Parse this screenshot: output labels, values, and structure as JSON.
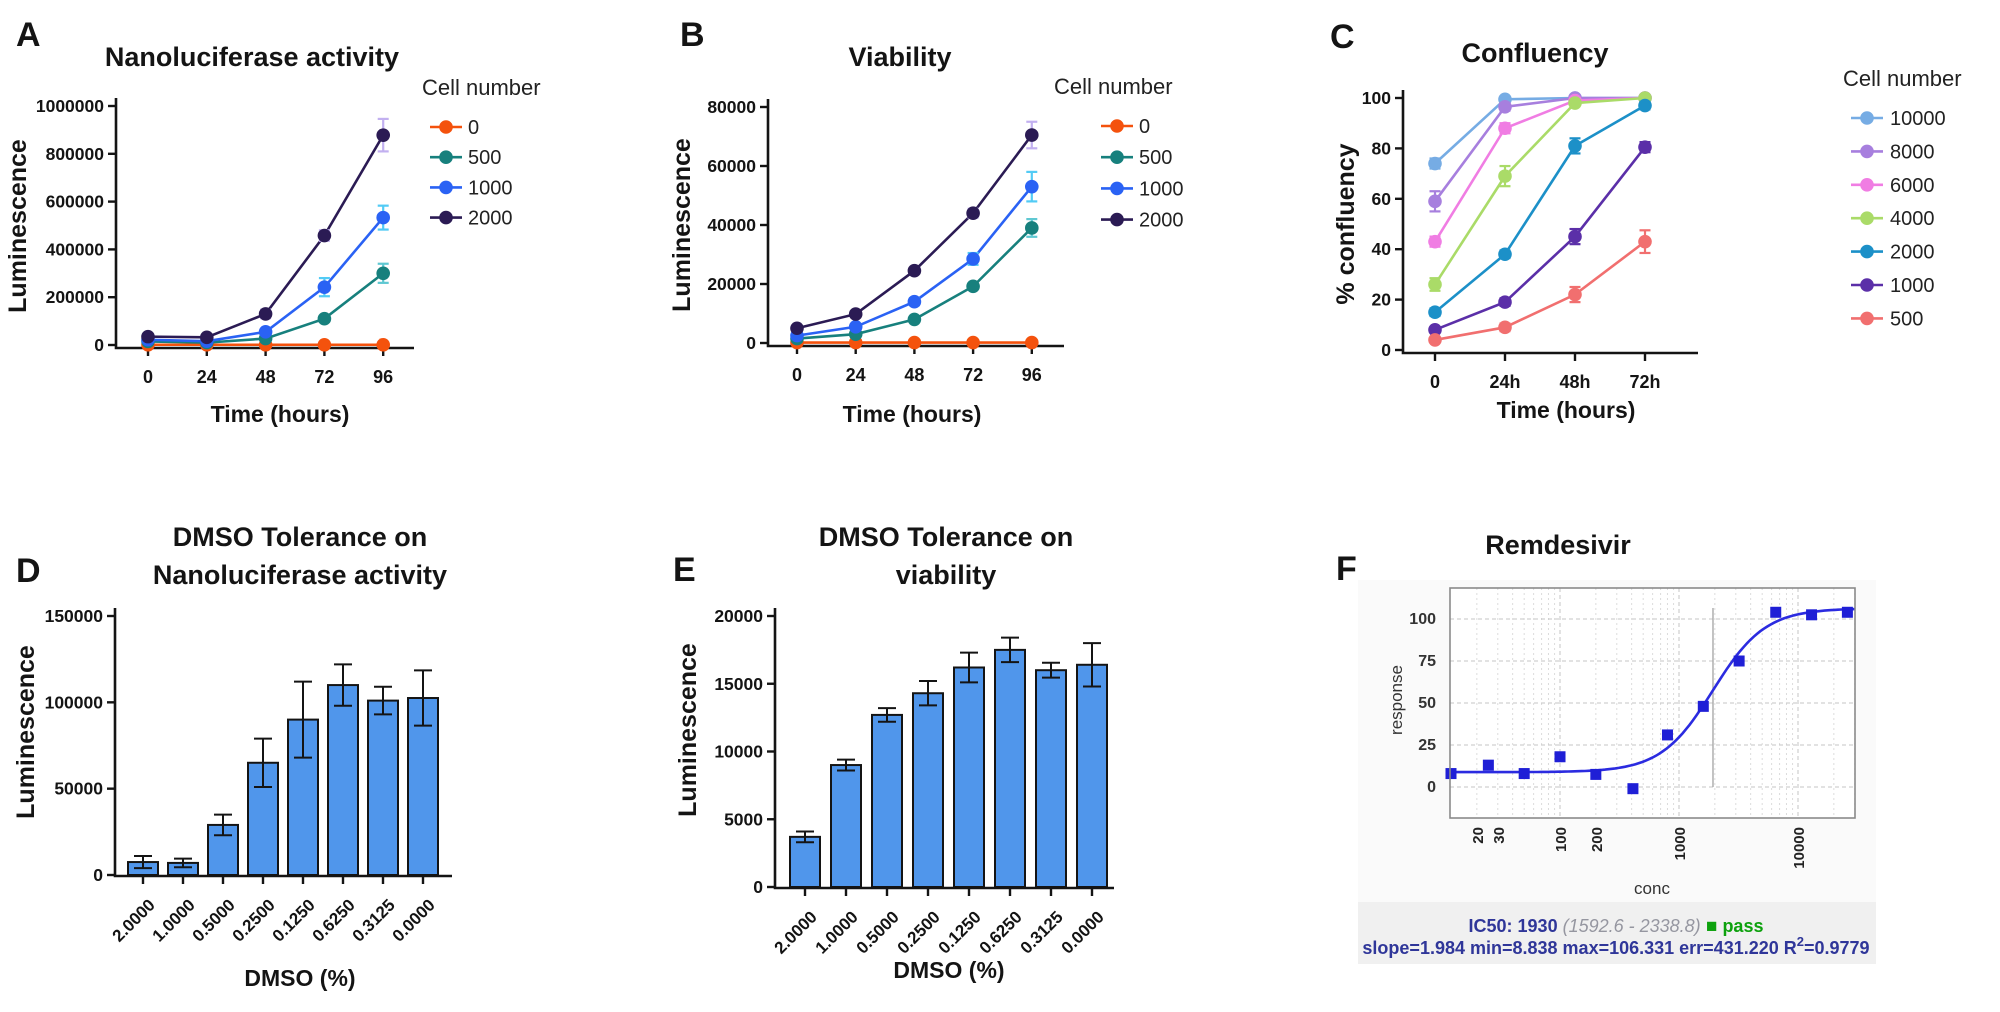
{
  "figure": {
    "background": "#ffffff",
    "description": "Six-panel assay optimization figure"
  },
  "chart_data": [
    {
      "panel": "A",
      "type": "line",
      "title": "Nanoluciferase activity",
      "xlabel": "Time (hours)",
      "ylabel": "Luminescence",
      "legend_title": "Cell number",
      "legend_position": "right",
      "grid": false,
      "categories": [
        "0",
        "24",
        "48",
        "72",
        "96"
      ],
      "ylim": [
        0,
        1000000
      ],
      "yticks": [
        0,
        200000,
        400000,
        600000,
        800000,
        1000000
      ],
      "ytick_labels": [
        "0",
        "200000",
        "400000",
        "600000",
        "800000",
        "1000000"
      ],
      "series": [
        {
          "name": "0",
          "color": "#F4520D",
          "err_color": "#F4520D",
          "values": [
            1000,
            1000,
            1000,
            1000,
            1000
          ],
          "errors": [
            0,
            0,
            0,
            0,
            0
          ]
        },
        {
          "name": "500",
          "color": "#17807D",
          "err_color": "#5FC8D2",
          "values": [
            15000,
            10000,
            27000,
            110000,
            300000
          ],
          "errors": [
            4000,
            3000,
            9000,
            12000,
            40000
          ]
        },
        {
          "name": "1000",
          "color": "#2A62F4",
          "err_color": "#52CBF5",
          "values": [
            22000,
            16000,
            55000,
            242000,
            533000
          ],
          "errors": [
            4000,
            4000,
            10000,
            38000,
            50000
          ]
        },
        {
          "name": "2000",
          "color": "#2B1B54",
          "err_color": "#C2B0F0",
          "values": [
            35000,
            32000,
            130000,
            458000,
            878000
          ],
          "errors": [
            5000,
            6000,
            18000,
            22000,
            68000
          ]
        }
      ]
    },
    {
      "panel": "B",
      "type": "line",
      "title": "Viability",
      "xlabel": "Time (hours)",
      "ylabel": "Luminescence",
      "legend_title": "Cell number",
      "legend_position": "right",
      "grid": false,
      "categories": [
        "0",
        "24",
        "48",
        "72",
        "96"
      ],
      "ylim": [
        0,
        80000
      ],
      "yticks": [
        0,
        20000,
        40000,
        60000,
        80000
      ],
      "ytick_labels": [
        "0",
        "20000",
        "40000",
        "60000",
        "80000"
      ],
      "series": [
        {
          "name": "0",
          "color": "#F4520D",
          "err_color": "#F4520D",
          "values": [
            150,
            150,
            150,
            150,
            150
          ],
          "errors": [
            0,
            0,
            0,
            0,
            0
          ]
        },
        {
          "name": "500",
          "color": "#17807D",
          "err_color": "#5FC8D2",
          "values": [
            1500,
            3000,
            8000,
            19200,
            39000
          ],
          "errors": [
            300,
            400,
            600,
            1000,
            3000
          ]
        },
        {
          "name": "1000",
          "color": "#2A62F4",
          "err_color": "#52CBF5",
          "values": [
            2500,
            5500,
            14000,
            28500,
            53000
          ],
          "errors": [
            300,
            500,
            1200,
            2000,
            5000
          ]
        },
        {
          "name": "2000",
          "color": "#2B1B54",
          "err_color": "#C2B0F0",
          "values": [
            5000,
            9800,
            24500,
            44000,
            70500
          ],
          "errors": [
            400,
            600,
            1000,
            1500,
            4500
          ]
        }
      ]
    },
    {
      "panel": "C",
      "type": "line",
      "title": "Confluency",
      "xlabel": "Time (hours)",
      "ylabel": "% confluency",
      "legend_title": "Cell number",
      "legend_position": "right",
      "grid": false,
      "categories": [
        "0",
        "24h",
        "48h",
        "72h"
      ],
      "ylim": [
        0,
        100
      ],
      "yticks": [
        0,
        20,
        40,
        60,
        80,
        100
      ],
      "ytick_labels": [
        "0",
        "20",
        "40",
        "60",
        "80",
        "100"
      ],
      "series": [
        {
          "name": "10000",
          "color": "#76ACE4",
          "err_color": "#76ACE4",
          "values": [
            74,
            99.5,
            100,
            100
          ],
          "errors": [
            2,
            0.8,
            0.8,
            0.8
          ]
        },
        {
          "name": "8000",
          "color": "#A77FDE",
          "err_color": "#A77FDE",
          "values": [
            59,
            96.5,
            100,
            100
          ],
          "errors": [
            4,
            1.5,
            0.8,
            0.8
          ]
        },
        {
          "name": "6000",
          "color": "#F07DE3",
          "err_color": "#F07DE3",
          "values": [
            43,
            88,
            99,
            100
          ],
          "errors": [
            2,
            2,
            0.8,
            0.8
          ]
        },
        {
          "name": "4000",
          "color": "#AADB68",
          "err_color": "#AADB68",
          "values": [
            26,
            69,
            98,
            100
          ],
          "errors": [
            2.5,
            4,
            1,
            0.8
          ]
        },
        {
          "name": "2000",
          "color": "#1C90C8",
          "err_color": "#1C90C8",
          "values": [
            15,
            38,
            81,
            97
          ],
          "errors": [
            1.5,
            1.5,
            3,
            1.5
          ]
        },
        {
          "name": "1000",
          "color": "#5B2FA8",
          "err_color": "#5B2FA8",
          "values": [
            8,
            19,
            45,
            80.5
          ],
          "errors": [
            1,
            1.5,
            3,
            2
          ]
        },
        {
          "name": "500",
          "color": "#F16F6F",
          "err_color": "#F16F6F",
          "values": [
            4,
            9,
            22,
            43
          ],
          "errors": [
            1,
            1.5,
            3,
            4.5
          ]
        }
      ]
    },
    {
      "panel": "D",
      "type": "bar",
      "title_lines": [
        "DMSO Tolerance on",
        "Nanoluciferase activity"
      ],
      "xlabel": "DMSO (%)",
      "ylabel": "Luminescence",
      "grid": false,
      "bar_color": "#5096EB",
      "categories": [
        "2.0000",
        "1.0000",
        "0.5000",
        "0.2500",
        "0.1250",
        "0.6250",
        "0.3125",
        "0.0000"
      ],
      "ylim": [
        0,
        150000
      ],
      "yticks": [
        0,
        50000,
        100000,
        150000
      ],
      "ytick_labels": [
        "0",
        "50000",
        "100000",
        "150000"
      ],
      "values": [
        7500,
        7000,
        29000,
        65000,
        90000,
        110000,
        101000,
        102500
      ],
      "errors": [
        3500,
        2500,
        6000,
        14000,
        22000,
        12000,
        8000,
        16000
      ]
    },
    {
      "panel": "E",
      "type": "bar",
      "title_lines": [
        "DMSO Tolerance on",
        "viability"
      ],
      "xlabel": "DMSO (%)",
      "ylabel": "Luminescence",
      "grid": false,
      "bar_color": "#5096EB",
      "categories": [
        "2.0000",
        "1.0000",
        "0.5000",
        "0.2500",
        "0.1250",
        "0.6250",
        "0.3125",
        "0.0000"
      ],
      "ylim": [
        0,
        20000
      ],
      "yticks": [
        0,
        5000,
        10000,
        15000,
        20000
      ],
      "ytick_labels": [
        "0",
        "5000",
        "10000",
        "15000",
        "20000"
      ],
      "values": [
        3700,
        9000,
        12700,
        14300,
        16200,
        17500,
        16000,
        16400
      ],
      "errors": [
        400,
        400,
        500,
        900,
        1100,
        900,
        550,
        1600
      ]
    },
    {
      "panel": "F",
      "type": "scatter",
      "title": "Remdesivir",
      "xlabel": "conc",
      "ylabel": "response",
      "x_scale": "log",
      "grid": true,
      "xlim": [
        11.9,
        30000
      ],
      "ylim": [
        -18,
        118
      ],
      "yticks": [
        0,
        25,
        50,
        75,
        100
      ],
      "xticks": [
        20,
        30,
        100,
        200,
        1000,
        10000
      ],
      "points": [
        [
          12,
          8
        ],
        [
          25,
          13
        ],
        [
          50,
          8
        ],
        [
          100,
          18
        ],
        [
          200,
          7.5
        ],
        [
          410,
          -1
        ],
        [
          800,
          31
        ],
        [
          1600,
          48
        ],
        [
          3200,
          75
        ],
        [
          6500,
          104
        ],
        [
          13000,
          102.5
        ],
        [
          26000,
          104
        ]
      ],
      "fit": {
        "model": "4PL",
        "ic50": 1930,
        "slope": 1.984,
        "min": 8.838,
        "max": 106.331,
        "err": 431.22,
        "r2": 0.9779
      },
      "ic50_line_x": 1930,
      "colors": {
        "curve": "#2B2BE0",
        "marker": "#1F1FD6",
        "grid_minor": "#DCDCDC",
        "grid_major": "#C6C6C6",
        "frame": "#8A8A8A",
        "card": "#FAFAFA",
        "strip": "#F0F0F0",
        "stats_text": "#2F3699",
        "ci_text": "#9596A0",
        "pass": "#0DA10D"
      },
      "stats": {
        "ic50_label": "IC50: 1930",
        "ci": "(1592.6 - 2338.8)",
        "pass_marker": "■",
        "pass": "pass",
        "line2_prefix": "slope=1.984 min=8.838 max=106.331 err=431.220 R",
        "line2_sup": "2",
        "line2_suffix": "=0.9779"
      }
    }
  ]
}
